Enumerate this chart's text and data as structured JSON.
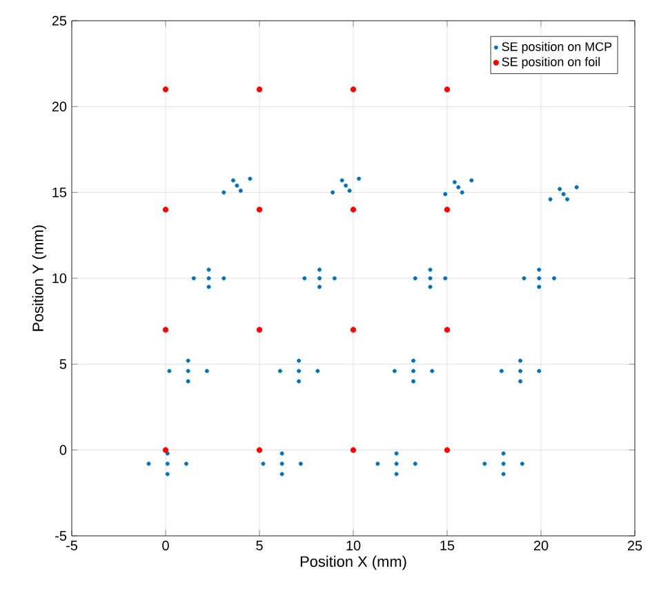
{
  "chart_data": {
    "type": "scatter",
    "xlabel": "Position X (mm)",
    "ylabel": "Position Y (mm)",
    "xlim": [
      -5,
      25
    ],
    "ylim": [
      -5,
      25
    ],
    "xticks": [
      -5,
      0,
      5,
      10,
      15,
      20,
      25
    ],
    "yticks": [
      -5,
      0,
      5,
      10,
      15,
      20,
      25
    ],
    "grid": true,
    "legend": "top right",
    "series": [
      {
        "name": "SE position on MCP",
        "color": "#0072bd",
        "x": [
          0.1,
          -0.9,
          1.1,
          0.1,
          0.1,
          6.2,
          5.2,
          7.2,
          6.2,
          6.2,
          12.3,
          11.3,
          13.3,
          12.3,
          12.3,
          18.0,
          17.0,
          19.0,
          18.0,
          18.0,
          1.2,
          0.2,
          2.2,
          1.2,
          1.2,
          7.1,
          6.1,
          8.1,
          7.1,
          7.1,
          13.2,
          12.2,
          14.2,
          13.2,
          13.2,
          18.9,
          17.9,
          19.9,
          18.9,
          18.9,
          2.3,
          1.5,
          3.1,
          2.3,
          2.3,
          8.2,
          7.4,
          9.0,
          8.2,
          8.2,
          14.1,
          13.3,
          14.9,
          14.1,
          14.1,
          19.9,
          19.1,
          20.7,
          19.9,
          19.9,
          3.8,
          3.1,
          4.5,
          3.6,
          4.0,
          9.6,
          8.9,
          10.3,
          9.4,
          9.8,
          15.6,
          14.9,
          16.3,
          15.4,
          15.8,
          21.2,
          20.5,
          21.9,
          21.0,
          21.4
        ],
        "values": [
          -0.8,
          -0.8,
          -0.8,
          -0.2,
          -1.4,
          -0.8,
          -0.8,
          -0.8,
          -0.2,
          -1.4,
          -0.8,
          -0.8,
          -0.8,
          -0.2,
          -1.4,
          -0.8,
          -0.8,
          -0.8,
          -0.2,
          -1.4,
          4.6,
          4.6,
          4.6,
          5.2,
          4.0,
          4.6,
          4.6,
          4.6,
          5.2,
          4.0,
          4.6,
          4.6,
          4.6,
          5.2,
          4.0,
          4.6,
          4.6,
          4.6,
          5.2,
          4.0,
          10.0,
          10.0,
          10.0,
          10.5,
          9.5,
          10.0,
          10.0,
          10.0,
          10.5,
          9.5,
          10.0,
          10.0,
          10.0,
          10.5,
          9.5,
          10.0,
          10.0,
          10.0,
          10.5,
          9.5,
          15.4,
          15.0,
          15.8,
          15.7,
          15.1,
          15.4,
          15.0,
          15.8,
          15.7,
          15.1,
          15.3,
          14.9,
          15.7,
          15.6,
          15.0,
          14.9,
          14.6,
          15.3,
          15.2,
          14.6
        ]
      },
      {
        "name": "SE position on foil",
        "color": "#ff0000",
        "x": [
          0,
          5,
          10,
          15,
          0,
          5,
          10,
          15,
          0,
          5,
          10,
          15,
          0,
          5,
          10,
          15
        ],
        "values": [
          0,
          0,
          0,
          0,
          7,
          7,
          7,
          7,
          14,
          14,
          14,
          14,
          21,
          21,
          21,
          21
        ]
      }
    ]
  }
}
